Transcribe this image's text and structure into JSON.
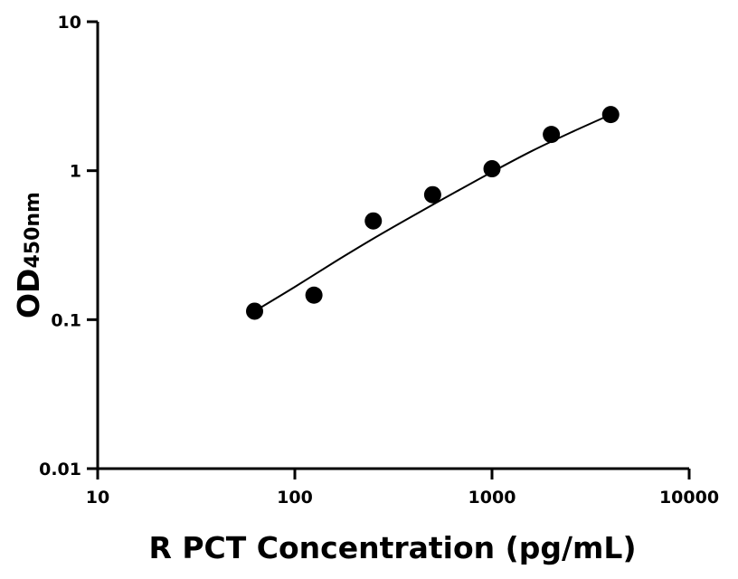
{
  "chart_data": {
    "type": "scatter",
    "title": "",
    "xlabel": "R PCT Concentration (pg/mL)",
    "ylabel_main": "OD",
    "ylabel_sub": "450nm",
    "x_scale": "log",
    "y_scale": "log",
    "xlim": [
      10,
      10000
    ],
    "ylim": [
      0.01,
      10
    ],
    "x_ticks": [
      10,
      100,
      1000,
      10000
    ],
    "x_tick_labels": [
      "10",
      "100",
      "1000",
      "10000"
    ],
    "y_ticks": [
      0.01,
      0.1,
      1,
      10
    ],
    "y_tick_labels": [
      "0.01",
      "0.1",
      "1",
      "10"
    ],
    "grid": false,
    "series": [
      {
        "x": [
          62.5,
          125,
          250,
          500,
          1000,
          2000,
          4000
        ],
        "y": [
          0.114,
          0.146,
          0.46,
          0.69,
          1.03,
          1.75,
          2.38
        ],
        "color": "#000000"
      }
    ],
    "fit_curve": {
      "type": "smooth",
      "x": [
        62.5,
        100,
        160,
        250,
        400,
        630,
        1000,
        1600,
        2500,
        4000
      ],
      "y": [
        0.114,
        0.166,
        0.245,
        0.35,
        0.5,
        0.7,
        0.98,
        1.36,
        1.8,
        2.38
      ],
      "color": "#000000"
    }
  }
}
